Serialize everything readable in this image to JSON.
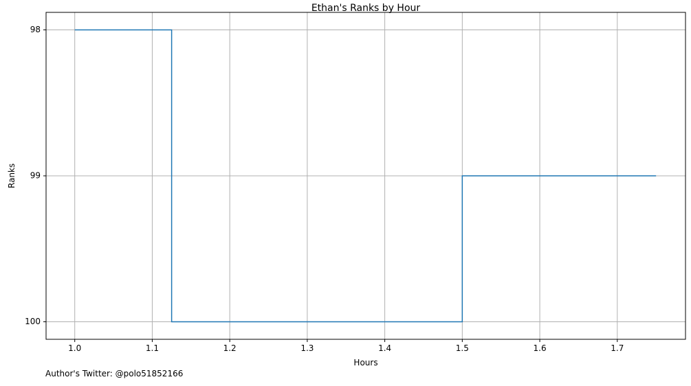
{
  "chart_data": {
    "type": "line",
    "title": "Ethan's Ranks by Hour",
    "xlabel": "Hours",
    "ylabel": "Ranks",
    "step": "post",
    "x": [
      1.0,
      1.125,
      1.25,
      1.375,
      1.5,
      1.625,
      1.75
    ],
    "series": [
      {
        "values": [
          98,
          100,
          100,
          100,
          99,
          99,
          99
        ],
        "color": "#1f77b4"
      }
    ],
    "xlim": [
      0.963,
      1.788
    ],
    "ylim": [
      100.12,
      97.88
    ],
    "y_inverted": true,
    "x_ticks": [
      1.0,
      1.1,
      1.2,
      1.3,
      1.4,
      1.5,
      1.6,
      1.7
    ],
    "x_tick_labels": [
      "1.0",
      "1.1",
      "1.2",
      "1.3",
      "1.4",
      "1.5",
      "1.6",
      "1.7"
    ],
    "y_ticks": [
      98,
      99,
      100
    ],
    "y_tick_labels": [
      "98",
      "99",
      "100"
    ],
    "grid": true,
    "grid_color": "#b0b0b0",
    "legend": "none"
  },
  "footer": {
    "text": "Author's Twitter: @polo51852166"
  }
}
